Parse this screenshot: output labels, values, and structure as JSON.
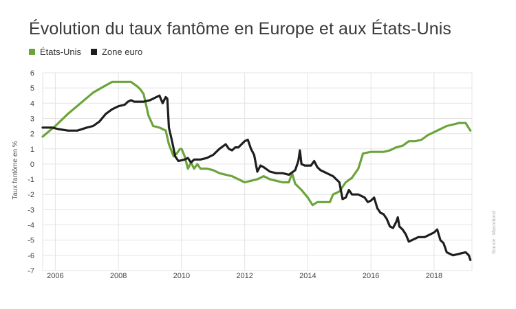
{
  "colors": {
    "us": "#6ba43a",
    "euro": "#1e1e1e",
    "grid": "#e3e3e3"
  },
  "source_text": "Source : Macrobond",
  "chart_data": {
    "type": "line",
    "title": "Évolution du taux fantôme en Europe et aux États-Unis",
    "ylabel": "Taux fantôme en %",
    "xlabel": "",
    "xlim": [
      2005.6,
      2019.2
    ],
    "ylim": [
      -7,
      6
    ],
    "yticks": [
      6,
      5,
      4,
      3,
      2,
      1,
      0,
      -1,
      -2,
      -3,
      -4,
      -5,
      -6,
      -7
    ],
    "xticks": [
      "2006",
      "2008",
      "2010",
      "2012",
      "2014",
      "2016",
      "2018"
    ],
    "xtick_values": [
      2006,
      2008,
      2010,
      2012,
      2014,
      2016,
      2018
    ],
    "grid": true,
    "legend_position": "top-left",
    "series": [
      {
        "name": "États-Unis",
        "x": [
          2005.6,
          2006.0,
          2006.4,
          2006.8,
          2007.2,
          2007.45,
          2007.8,
          2008.2,
          2008.4,
          2008.6,
          2008.7,
          2008.8,
          2008.95,
          2009.1,
          2009.3,
          2009.4,
          2009.5,
          2009.6,
          2009.75,
          2009.85,
          2009.95,
          2010.0,
          2010.1,
          2010.2,
          2010.3,
          2010.4,
          2010.5,
          2010.6,
          2010.8,
          2011.0,
          2011.2,
          2011.4,
          2011.6,
          2011.8,
          2012.0,
          2012.2,
          2012.4,
          2012.6,
          2012.8,
          2013.0,
          2013.2,
          2013.4,
          2013.5,
          2013.6,
          2013.8,
          2014.0,
          2014.15,
          2014.3,
          2014.5,
          2014.7,
          2014.8,
          2015.0,
          2015.2,
          2015.4,
          2015.6,
          2015.75,
          2016.0,
          2016.2,
          2016.4,
          2016.6,
          2016.8,
          2017.0,
          2017.2,
          2017.4,
          2017.6,
          2017.8,
          2018.0,
          2018.2,
          2018.4,
          2018.6,
          2018.8,
          2019.0,
          2019.15
        ],
        "values": [
          1.8,
          2.5,
          3.3,
          4.0,
          4.7,
          5.0,
          5.4,
          5.4,
          5.4,
          5.1,
          4.9,
          4.6,
          3.2,
          2.5,
          2.4,
          2.3,
          2.2,
          1.3,
          0.5,
          0.7,
          1.0,
          1.0,
          0.5,
          -0.3,
          0.1,
          -0.3,
          0.0,
          -0.3,
          -0.3,
          -0.4,
          -0.6,
          -0.7,
          -0.8,
          -1.0,
          -1.2,
          -1.1,
          -1.0,
          -0.8,
          -1.0,
          -1.1,
          -1.2,
          -1.2,
          -0.6,
          -1.3,
          -1.7,
          -2.2,
          -2.7,
          -2.5,
          -2.5,
          -2.5,
          -2.0,
          -1.8,
          -1.2,
          -0.9,
          -0.3,
          0.7,
          0.8,
          0.8,
          0.8,
          0.9,
          1.1,
          1.2,
          1.5,
          1.5,
          1.6,
          1.9,
          2.1,
          2.3,
          2.5,
          2.6,
          2.7,
          2.7,
          2.2
        ]
      },
      {
        "name": "Zone euro",
        "x": [
          2005.6,
          2005.9,
          2006.1,
          2006.4,
          2006.7,
          2007.0,
          2007.2,
          2007.4,
          2007.6,
          2007.8,
          2008.0,
          2008.2,
          2008.3,
          2008.4,
          2008.5,
          2008.8,
          2009.0,
          2009.2,
          2009.3,
          2009.4,
          2009.45,
          2009.5,
          2009.55,
          2009.6,
          2009.7,
          2009.8,
          2009.9,
          2010.1,
          2010.2,
          2010.3,
          2010.4,
          2010.6,
          2010.8,
          2011.0,
          2011.2,
          2011.4,
          2011.5,
          2011.6,
          2011.7,
          2011.8,
          2012.0,
          2012.1,
          2012.2,
          2012.3,
          2012.4,
          2012.5,
          2012.6,
          2012.8,
          2013.0,
          2013.2,
          2013.4,
          2013.6,
          2013.7,
          2013.75,
          2013.8,
          2013.9,
          2014.1,
          2014.2,
          2014.3,
          2014.4,
          2014.5,
          2014.6,
          2014.8,
          2015.0,
          2015.1,
          2015.2,
          2015.3,
          2015.4,
          2015.6,
          2015.8,
          2015.9,
          2016.0,
          2016.1,
          2016.2,
          2016.3,
          2016.4,
          2016.5,
          2016.6,
          2016.7,
          2016.8,
          2016.85,
          2016.9,
          2017.0,
          2017.1,
          2017.2,
          2017.3,
          2017.5,
          2017.7,
          2017.9,
          2018.0,
          2018.1,
          2018.2,
          2018.3,
          2018.4,
          2018.6,
          2018.8,
          2019.0,
          2019.1,
          2019.15
        ],
        "values": [
          2.4,
          2.4,
          2.3,
          2.2,
          2.2,
          2.4,
          2.5,
          2.8,
          3.3,
          3.6,
          3.8,
          3.9,
          4.1,
          4.2,
          4.1,
          4.1,
          4.2,
          4.4,
          4.5,
          4.0,
          4.2,
          4.4,
          4.3,
          2.4,
          1.5,
          0.5,
          0.2,
          0.3,
          0.4,
          0.1,
          0.3,
          0.3,
          0.4,
          0.6,
          1.0,
          1.3,
          1.0,
          0.9,
          1.1,
          1.1,
          1.5,
          1.6,
          1.0,
          0.6,
          -0.5,
          -0.1,
          -0.2,
          -0.5,
          -0.6,
          -0.6,
          -0.7,
          -0.4,
          0.2,
          0.9,
          0.0,
          -0.1,
          -0.1,
          0.2,
          -0.2,
          -0.4,
          -0.5,
          -0.6,
          -0.8,
          -1.2,
          -2.3,
          -2.2,
          -1.7,
          -2.0,
          -2.0,
          -2.2,
          -2.5,
          -2.4,
          -2.2,
          -2.9,
          -3.2,
          -3.3,
          -3.6,
          -4.1,
          -4.2,
          -3.8,
          -3.5,
          -4.1,
          -4.3,
          -4.6,
          -5.1,
          -5.0,
          -4.8,
          -4.8,
          -4.6,
          -4.5,
          -4.3,
          -5.0,
          -5.2,
          -5.8,
          -6.0,
          -5.9,
          -5.8,
          -6.0,
          -6.3
        ]
      }
    ]
  }
}
